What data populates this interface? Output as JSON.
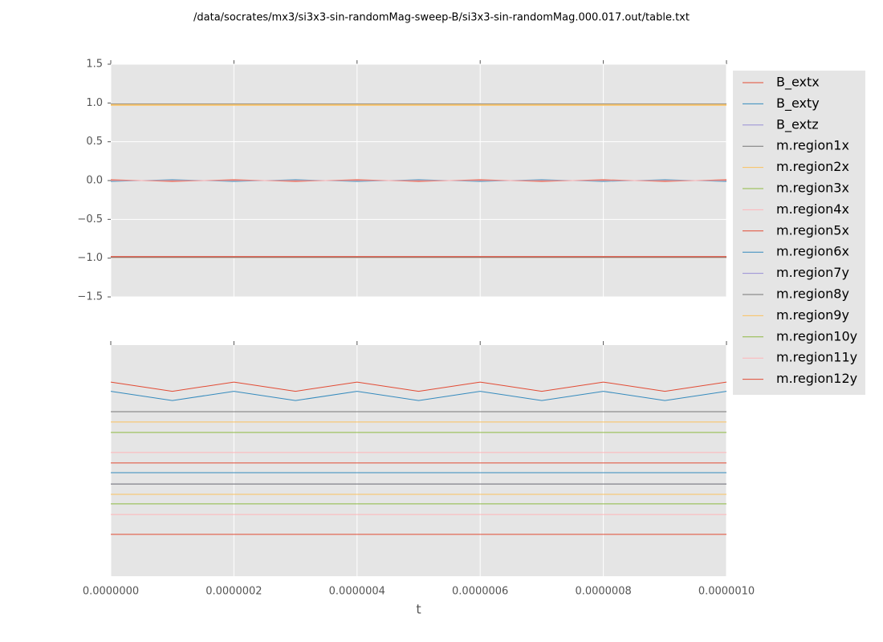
{
  "chart_data": [
    {
      "type": "line",
      "title": "/data/socrates/mx3/si3x3-sin-randomMag-sweep-B/si3x3-sin-randomMag.000.017.out/table.txt",
      "x": [
        0,
        1e-07,
        2e-07,
        3e-07,
        4e-07,
        5e-07,
        6e-07,
        7e-07,
        8e-07,
        9e-07,
        1e-06
      ],
      "xlim": [
        0,
        1e-06
      ],
      "xticks": [
        0,
        2e-07,
        4e-07,
        6e-07,
        8e-07,
        1e-06
      ],
      "ylim": [
        -1.5,
        1.5
      ],
      "yticks": [
        {
          "value": -1.5,
          "label": "−1.5"
        },
        {
          "value": -1,
          "label": "−1.0"
        },
        {
          "value": -0.5,
          "label": "−0.5"
        },
        {
          "value": 0,
          "label": "0.0"
        },
        {
          "value": 0.5,
          "label": "0.5"
        },
        {
          "value": 1,
          "label": "1.0"
        },
        {
          "value": 1.5,
          "label": "1.5"
        }
      ],
      "grid": true,
      "legend": "outside-right",
      "background": "#e5e5e5",
      "series": [
        {
          "name": "B_extx",
          "color": "#E24A33",
          "values": [
            0.01,
            -0.01,
            0.01,
            -0.01,
            0.01,
            -0.01,
            0.01,
            -0.01,
            0.01,
            -0.01,
            0.01
          ]
        },
        {
          "name": "B_exty",
          "color": "#348ABD",
          "values": [
            -0.01,
            0.01,
            -0.01,
            0.01,
            -0.01,
            0.01,
            -0.01,
            0.01,
            -0.01,
            0.01,
            -0.01
          ]
        },
        {
          "name": "B_extz",
          "color": "#988ED5",
          "values": [
            0,
            0,
            0,
            0,
            0,
            0,
            0,
            0,
            0,
            0,
            0
          ]
        },
        {
          "name": "m.region1x",
          "color": "#777777",
          "values": [
            0.99,
            0.99,
            0.99,
            0.99,
            0.99,
            0.99,
            0.99,
            0.99,
            0.99,
            0.99,
            0.99
          ]
        },
        {
          "name": "m.region2x",
          "color": "#FBC15E",
          "values": [
            0.97,
            0.97,
            0.97,
            0.97,
            0.97,
            0.97,
            0.97,
            0.97,
            0.97,
            0.97,
            0.97
          ]
        },
        {
          "name": "m.region3x",
          "color": "#8EBA42",
          "values": [
            -0.99,
            -0.99,
            -0.99,
            -0.99,
            -0.99,
            -0.99,
            -0.99,
            -0.99,
            -0.99,
            -0.99,
            -0.99
          ]
        },
        {
          "name": "m.region4x",
          "color": "#FFB5B8",
          "values": [
            -0.98,
            -0.98,
            -0.98,
            -0.98,
            -0.98,
            -0.98,
            -0.98,
            -0.98,
            -0.98,
            -0.98,
            -0.98
          ]
        },
        {
          "name": "m.region5x",
          "color": "#E24A33",
          "values": [
            -0.99,
            -0.99,
            -0.99,
            -0.99,
            -0.99,
            -0.99,
            -0.99,
            -0.99,
            -0.99,
            -0.99,
            -0.99
          ]
        },
        {
          "name": "m.region6x",
          "color": "#348ABD",
          "values": [
            0,
            0,
            0,
            0,
            0,
            0,
            0,
            0,
            0,
            0,
            0
          ]
        },
        {
          "name": "m.region7y",
          "color": "#988ED5",
          "values": [
            0,
            0,
            0,
            0,
            0,
            0,
            0,
            0,
            0,
            0,
            0
          ]
        },
        {
          "name": "m.region8y",
          "color": "#777777",
          "values": [
            -0.99,
            -0.99,
            -0.99,
            -0.99,
            -0.99,
            -0.99,
            -0.99,
            -0.99,
            -0.99,
            -0.99,
            -0.99
          ]
        },
        {
          "name": "m.region9y",
          "color": "#FBC15E",
          "values": [
            0.98,
            0.98,
            0.98,
            0.98,
            0.98,
            0.98,
            0.98,
            0.98,
            0.98,
            0.98,
            0.98
          ]
        },
        {
          "name": "m.region10y",
          "color": "#8EBA42",
          "values": [
            0,
            0,
            0,
            0,
            0,
            0,
            0,
            0,
            0,
            0,
            0
          ]
        },
        {
          "name": "m.region11y",
          "color": "#FFB5B8",
          "values": [
            0,
            0,
            0,
            0,
            0,
            0,
            0,
            0,
            0,
            0,
            0
          ]
        },
        {
          "name": "m.region12y",
          "color": "#E24A33",
          "values": [
            -0.98,
            -0.98,
            -0.98,
            -0.98,
            -0.98,
            -0.98,
            -0.98,
            -0.98,
            -0.98,
            -0.98,
            -0.98
          ]
        }
      ]
    },
    {
      "type": "line",
      "xlabel": "t",
      "x": [
        0,
        1e-07,
        2e-07,
        3e-07,
        4e-07,
        5e-07,
        6e-07,
        7e-07,
        8e-07,
        9e-07,
        1e-06
      ],
      "xlim": [
        0,
        1e-06
      ],
      "xticks": [
        {
          "value": 0,
          "label": "0.0000000"
        },
        {
          "value": 2e-07,
          "label": "0.0000002"
        },
        {
          "value": 4e-07,
          "label": "0.0000004"
        },
        {
          "value": 6e-07,
          "label": "0.0000006"
        },
        {
          "value": 8e-07,
          "label": "0.0000008"
        },
        {
          "value": 1e-06,
          "label": "0.0000010"
        }
      ],
      "ylim": [
        0,
        1
      ],
      "grid": true,
      "background": "#e5e5e5",
      "series": [
        {
          "color": "#E24A33",
          "values": [
            0.84,
            0.8,
            0.84,
            0.8,
            0.84,
            0.8,
            0.84,
            0.8,
            0.84,
            0.8,
            0.84
          ]
        },
        {
          "color": "#348ABD",
          "values": [
            0.8,
            0.76,
            0.8,
            0.76,
            0.8,
            0.76,
            0.8,
            0.76,
            0.8,
            0.76,
            0.8
          ]
        },
        {
          "color": "#988ED5",
          "values": [
            0.712,
            0.712,
            0.712,
            0.712,
            0.712,
            0.712,
            0.712,
            0.712,
            0.712,
            0.712,
            0.712
          ]
        },
        {
          "color": "#777777",
          "values": [
            0.712,
            0.712,
            0.712,
            0.712,
            0.712,
            0.712,
            0.712,
            0.712,
            0.712,
            0.712,
            0.712
          ]
        },
        {
          "color": "#FBC15E",
          "values": [
            0.667,
            0.667,
            0.667,
            0.667,
            0.667,
            0.667,
            0.667,
            0.667,
            0.667,
            0.667,
            0.667
          ]
        },
        {
          "color": "#8EBA42",
          "values": [
            0.622,
            0.622,
            0.622,
            0.622,
            0.622,
            0.622,
            0.622,
            0.622,
            0.622,
            0.622,
            0.622
          ]
        },
        {
          "color": "#FFB5B8",
          "values": [
            0.535,
            0.535,
            0.535,
            0.535,
            0.535,
            0.535,
            0.535,
            0.535,
            0.535,
            0.535,
            0.535
          ]
        },
        {
          "color": "#E24A33",
          "values": [
            0.49,
            0.49,
            0.49,
            0.49,
            0.49,
            0.49,
            0.49,
            0.49,
            0.49,
            0.49,
            0.49
          ]
        },
        {
          "color": "#348ABD",
          "values": [
            0.448,
            0.448,
            0.448,
            0.448,
            0.448,
            0.448,
            0.448,
            0.448,
            0.448,
            0.448,
            0.448
          ]
        },
        {
          "color": "#988ED5",
          "values": [
            0.399,
            0.399,
            0.399,
            0.399,
            0.399,
            0.399,
            0.399,
            0.399,
            0.399,
            0.399,
            0.399
          ]
        },
        {
          "color": "#777777",
          "values": [
            0.399,
            0.399,
            0.399,
            0.399,
            0.399,
            0.399,
            0.399,
            0.399,
            0.399,
            0.399,
            0.399
          ]
        },
        {
          "color": "#FBC15E",
          "values": [
            0.354,
            0.354,
            0.354,
            0.354,
            0.354,
            0.354,
            0.354,
            0.354,
            0.354,
            0.354,
            0.354
          ]
        },
        {
          "color": "#8EBA42",
          "values": [
            0.313,
            0.313,
            0.313,
            0.313,
            0.313,
            0.313,
            0.313,
            0.313,
            0.313,
            0.313,
            0.313
          ]
        },
        {
          "color": "#FFB5B8",
          "values": [
            0.267,
            0.267,
            0.267,
            0.267,
            0.267,
            0.267,
            0.267,
            0.267,
            0.267,
            0.267,
            0.267
          ]
        },
        {
          "color": "#E24A33",
          "values": [
            0.181,
            0.181,
            0.181,
            0.181,
            0.181,
            0.181,
            0.181,
            0.181,
            0.181,
            0.181,
            0.181
          ]
        }
      ]
    }
  ]
}
